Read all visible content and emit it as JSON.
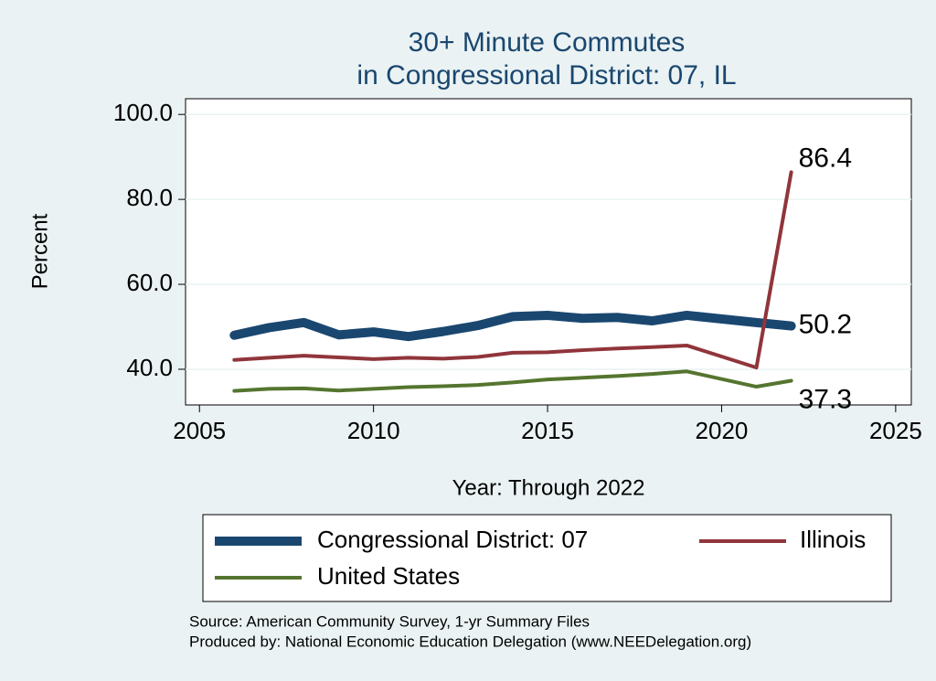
{
  "chart_data": {
    "type": "line",
    "title": "30+ Minute Commutes",
    "subtitle": "in Congressional District:  07, IL",
    "x_label": "Year: Through 2022",
    "y_label": "Percent",
    "x": [
      2006,
      2007,
      2008,
      2009,
      2010,
      2011,
      2012,
      2013,
      2014,
      2015,
      2016,
      2017,
      2018,
      2019,
      2021,
      2022
    ],
    "series": [
      {
        "name": "Congressional District:  07",
        "color": "#1a476f",
        "values": [
          48.0,
          49.8,
          51.0,
          48.1,
          48.8,
          47.7,
          48.9,
          50.3,
          52.4,
          52.7,
          52.0,
          52.2,
          51.4,
          52.7,
          51.0,
          50.2
        ]
      },
      {
        "name": "Illinois",
        "color": "#90353b",
        "values": [
          42.2,
          42.7,
          43.2,
          42.8,
          42.4,
          42.7,
          42.5,
          42.9,
          43.9,
          44.0,
          44.5,
          44.9,
          45.2,
          45.6,
          40.4,
          86.4
        ]
      },
      {
        "name": "United States",
        "color": "#55752f",
        "values": [
          34.9,
          35.4,
          35.5,
          35.0,
          35.4,
          35.8,
          36.0,
          36.3,
          36.9,
          37.6,
          38.0,
          38.4,
          38.9,
          39.5,
          35.9,
          37.3
        ]
      }
    ],
    "xlim": [
      2004.6,
      2025.45
    ],
    "ylim": [
      31.6,
      103.7
    ],
    "xticks": [
      2005,
      2010,
      2015,
      2020,
      2025
    ],
    "yticks": [
      {
        "value": 40,
        "label": "40.0"
      },
      {
        "value": 60,
        "label": "60.0"
      },
      {
        "value": 80,
        "label": "80.0"
      },
      {
        "value": 100,
        "label": "100.0"
      }
    ],
    "grid": true,
    "notes": [
      "Source: American Community Survey, 1-yr Summary Files",
      "Produced by: National Economic Education Delegation (www.NEEDelegation.org)"
    ]
  }
}
